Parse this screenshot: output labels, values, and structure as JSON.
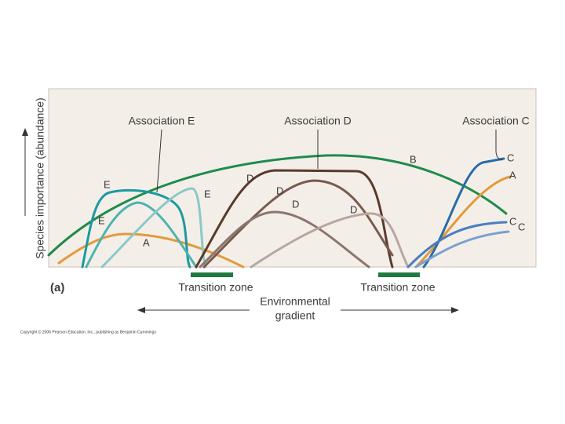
{
  "y_axis_label": "Species importance (abundance)",
  "associations": [
    "Association E",
    "Association D",
    "Association C"
  ],
  "curve_labels": [
    "E",
    "E",
    "E",
    "A",
    "B",
    "D",
    "D",
    "D",
    "D",
    "C",
    "A",
    "C",
    "C"
  ],
  "panel_label": "(a)",
  "transition_zones": [
    "Transition zone",
    "Transition zone"
  ],
  "x_axis_label": [
    "Environmental",
    "gradient"
  ],
  "copyright": "Copyright © 2006 Pearson Education, Inc., publishing as Benjamin Cummings"
}
